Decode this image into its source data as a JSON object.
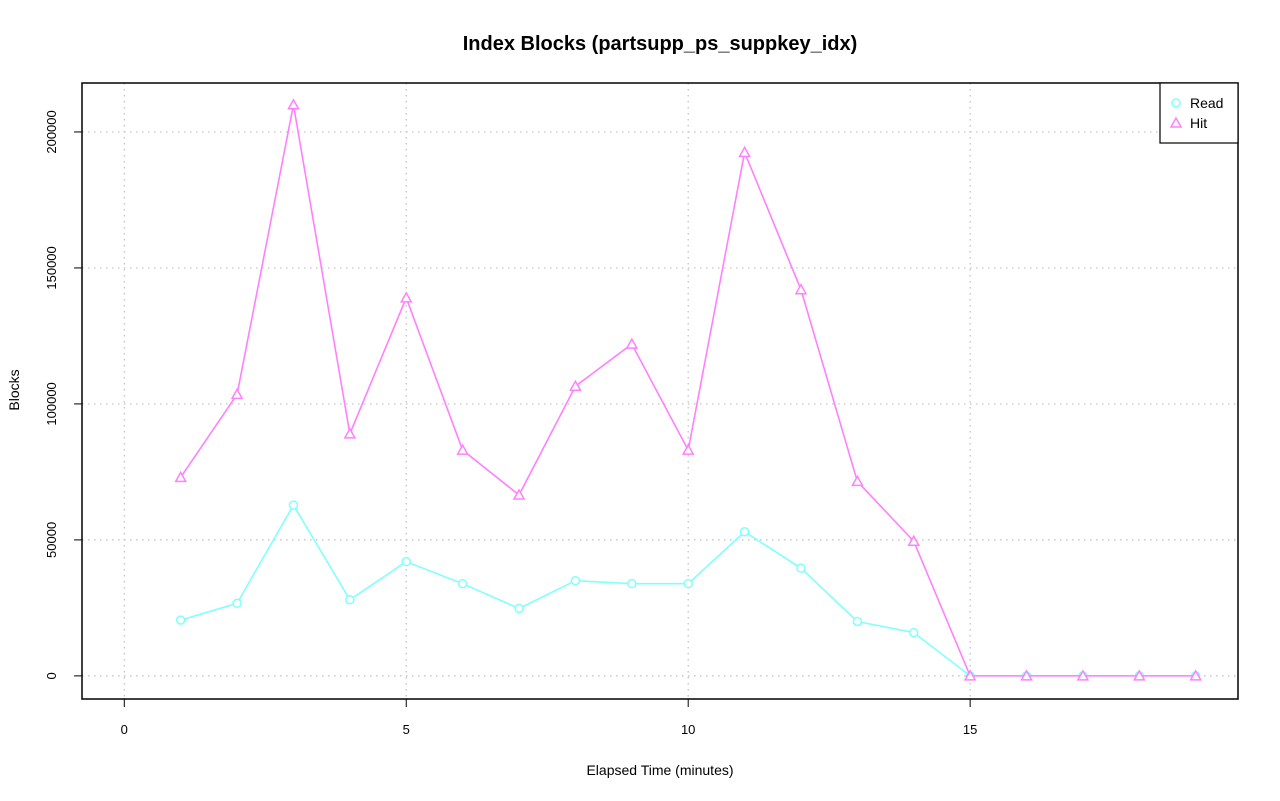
{
  "chart_data": {
    "type": "line",
    "title": "Index Blocks (partsupp_ps_suppkey_idx)",
    "xlabel": "Elapsed Time (minutes)",
    "ylabel": "Blocks",
    "xlim": [
      -0.75,
      19.75
    ],
    "ylim": [
      -8500,
      218000
    ],
    "xticks": [
      0,
      5,
      10,
      15
    ],
    "yticks": [
      0,
      50000,
      100000,
      150000,
      200000
    ],
    "grid": true,
    "legend_position": "top-right",
    "x": [
      1,
      2,
      3,
      4,
      5,
      6,
      7,
      8,
      9,
      10,
      11,
      12,
      13,
      14,
      15,
      16,
      17,
      18,
      19
    ],
    "series": [
      {
        "name": "Read",
        "color": "#80ffff",
        "marker": "circle",
        "values": [
          20500,
          26700,
          62800,
          28000,
          42000,
          33900,
          24800,
          35000,
          33900,
          33900,
          53000,
          39600,
          20000,
          15900,
          0,
          0,
          0,
          0,
          0
        ]
      },
      {
        "name": "Hit",
        "color": "#ff80ff",
        "marker": "triangle",
        "values": [
          73000,
          103500,
          210000,
          89000,
          139000,
          83000,
          66500,
          106500,
          122000,
          83000,
          192500,
          142000,
          71500,
          49500,
          0,
          0,
          0,
          0,
          0
        ]
      }
    ]
  }
}
